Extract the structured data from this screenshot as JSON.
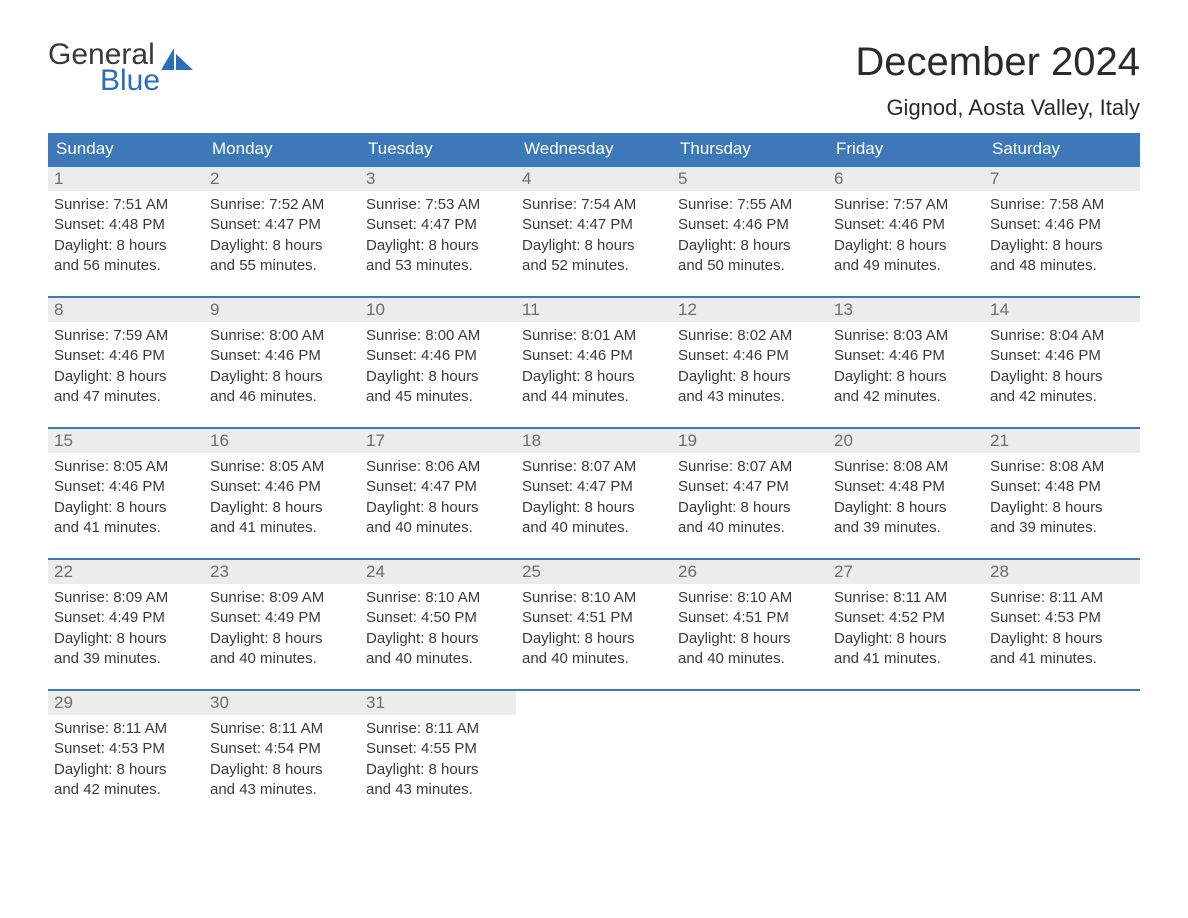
{
  "brand": {
    "word1": "General",
    "word2": "Blue",
    "text_color": "#3a3a3a",
    "accent_color": "#2a6db8"
  },
  "title": "December 2024",
  "location": "Gignod, Aosta Valley, Italy",
  "colors": {
    "header_bg": "#3d79b8",
    "header_text": "#ffffff",
    "daynum_bg": "#ececec",
    "daynum_text": "#6e6e6e",
    "body_text": "#3a3a3a",
    "page_bg": "#ffffff",
    "week_border": "#3d79b8"
  },
  "typography": {
    "title_fontsize": 40,
    "location_fontsize": 22,
    "weekday_fontsize": 17,
    "daynum_fontsize": 17,
    "body_fontsize": 15
  },
  "weekdays": [
    "Sunday",
    "Monday",
    "Tuesday",
    "Wednesday",
    "Thursday",
    "Friday",
    "Saturday"
  ],
  "weeks": [
    [
      {
        "n": "1",
        "sr": "Sunrise: 7:51 AM",
        "ss": "Sunset: 4:48 PM",
        "d1": "Daylight: 8 hours",
        "d2": "and 56 minutes."
      },
      {
        "n": "2",
        "sr": "Sunrise: 7:52 AM",
        "ss": "Sunset: 4:47 PM",
        "d1": "Daylight: 8 hours",
        "d2": "and 55 minutes."
      },
      {
        "n": "3",
        "sr": "Sunrise: 7:53 AM",
        "ss": "Sunset: 4:47 PM",
        "d1": "Daylight: 8 hours",
        "d2": "and 53 minutes."
      },
      {
        "n": "4",
        "sr": "Sunrise: 7:54 AM",
        "ss": "Sunset: 4:47 PM",
        "d1": "Daylight: 8 hours",
        "d2": "and 52 minutes."
      },
      {
        "n": "5",
        "sr": "Sunrise: 7:55 AM",
        "ss": "Sunset: 4:46 PM",
        "d1": "Daylight: 8 hours",
        "d2": "and 50 minutes."
      },
      {
        "n": "6",
        "sr": "Sunrise: 7:57 AM",
        "ss": "Sunset: 4:46 PM",
        "d1": "Daylight: 8 hours",
        "d2": "and 49 minutes."
      },
      {
        "n": "7",
        "sr": "Sunrise: 7:58 AM",
        "ss": "Sunset: 4:46 PM",
        "d1": "Daylight: 8 hours",
        "d2": "and 48 minutes."
      }
    ],
    [
      {
        "n": "8",
        "sr": "Sunrise: 7:59 AM",
        "ss": "Sunset: 4:46 PM",
        "d1": "Daylight: 8 hours",
        "d2": "and 47 minutes."
      },
      {
        "n": "9",
        "sr": "Sunrise: 8:00 AM",
        "ss": "Sunset: 4:46 PM",
        "d1": "Daylight: 8 hours",
        "d2": "and 46 minutes."
      },
      {
        "n": "10",
        "sr": "Sunrise: 8:00 AM",
        "ss": "Sunset: 4:46 PM",
        "d1": "Daylight: 8 hours",
        "d2": "and 45 minutes."
      },
      {
        "n": "11",
        "sr": "Sunrise: 8:01 AM",
        "ss": "Sunset: 4:46 PM",
        "d1": "Daylight: 8 hours",
        "d2": "and 44 minutes."
      },
      {
        "n": "12",
        "sr": "Sunrise: 8:02 AM",
        "ss": "Sunset: 4:46 PM",
        "d1": "Daylight: 8 hours",
        "d2": "and 43 minutes."
      },
      {
        "n": "13",
        "sr": "Sunrise: 8:03 AM",
        "ss": "Sunset: 4:46 PM",
        "d1": "Daylight: 8 hours",
        "d2": "and 42 minutes."
      },
      {
        "n": "14",
        "sr": "Sunrise: 8:04 AM",
        "ss": "Sunset: 4:46 PM",
        "d1": "Daylight: 8 hours",
        "d2": "and 42 minutes."
      }
    ],
    [
      {
        "n": "15",
        "sr": "Sunrise: 8:05 AM",
        "ss": "Sunset: 4:46 PM",
        "d1": "Daylight: 8 hours",
        "d2": "and 41 minutes."
      },
      {
        "n": "16",
        "sr": "Sunrise: 8:05 AM",
        "ss": "Sunset: 4:46 PM",
        "d1": "Daylight: 8 hours",
        "d2": "and 41 minutes."
      },
      {
        "n": "17",
        "sr": "Sunrise: 8:06 AM",
        "ss": "Sunset: 4:47 PM",
        "d1": "Daylight: 8 hours",
        "d2": "and 40 minutes."
      },
      {
        "n": "18",
        "sr": "Sunrise: 8:07 AM",
        "ss": "Sunset: 4:47 PM",
        "d1": "Daylight: 8 hours",
        "d2": "and 40 minutes."
      },
      {
        "n": "19",
        "sr": "Sunrise: 8:07 AM",
        "ss": "Sunset: 4:47 PM",
        "d1": "Daylight: 8 hours",
        "d2": "and 40 minutes."
      },
      {
        "n": "20",
        "sr": "Sunrise: 8:08 AM",
        "ss": "Sunset: 4:48 PM",
        "d1": "Daylight: 8 hours",
        "d2": "and 39 minutes."
      },
      {
        "n": "21",
        "sr": "Sunrise: 8:08 AM",
        "ss": "Sunset: 4:48 PM",
        "d1": "Daylight: 8 hours",
        "d2": "and 39 minutes."
      }
    ],
    [
      {
        "n": "22",
        "sr": "Sunrise: 8:09 AM",
        "ss": "Sunset: 4:49 PM",
        "d1": "Daylight: 8 hours",
        "d2": "and 39 minutes."
      },
      {
        "n": "23",
        "sr": "Sunrise: 8:09 AM",
        "ss": "Sunset: 4:49 PM",
        "d1": "Daylight: 8 hours",
        "d2": "and 40 minutes."
      },
      {
        "n": "24",
        "sr": "Sunrise: 8:10 AM",
        "ss": "Sunset: 4:50 PM",
        "d1": "Daylight: 8 hours",
        "d2": "and 40 minutes."
      },
      {
        "n": "25",
        "sr": "Sunrise: 8:10 AM",
        "ss": "Sunset: 4:51 PM",
        "d1": "Daylight: 8 hours",
        "d2": "and 40 minutes."
      },
      {
        "n": "26",
        "sr": "Sunrise: 8:10 AM",
        "ss": "Sunset: 4:51 PM",
        "d1": "Daylight: 8 hours",
        "d2": "and 40 minutes."
      },
      {
        "n": "27",
        "sr": "Sunrise: 8:11 AM",
        "ss": "Sunset: 4:52 PM",
        "d1": "Daylight: 8 hours",
        "d2": "and 41 minutes."
      },
      {
        "n": "28",
        "sr": "Sunrise: 8:11 AM",
        "ss": "Sunset: 4:53 PM",
        "d1": "Daylight: 8 hours",
        "d2": "and 41 minutes."
      }
    ],
    [
      {
        "n": "29",
        "sr": "Sunrise: 8:11 AM",
        "ss": "Sunset: 4:53 PM",
        "d1": "Daylight: 8 hours",
        "d2": "and 42 minutes."
      },
      {
        "n": "30",
        "sr": "Sunrise: 8:11 AM",
        "ss": "Sunset: 4:54 PM",
        "d1": "Daylight: 8 hours",
        "d2": "and 43 minutes."
      },
      {
        "n": "31",
        "sr": "Sunrise: 8:11 AM",
        "ss": "Sunset: 4:55 PM",
        "d1": "Daylight: 8 hours",
        "d2": "and 43 minutes."
      },
      null,
      null,
      null,
      null
    ]
  ]
}
